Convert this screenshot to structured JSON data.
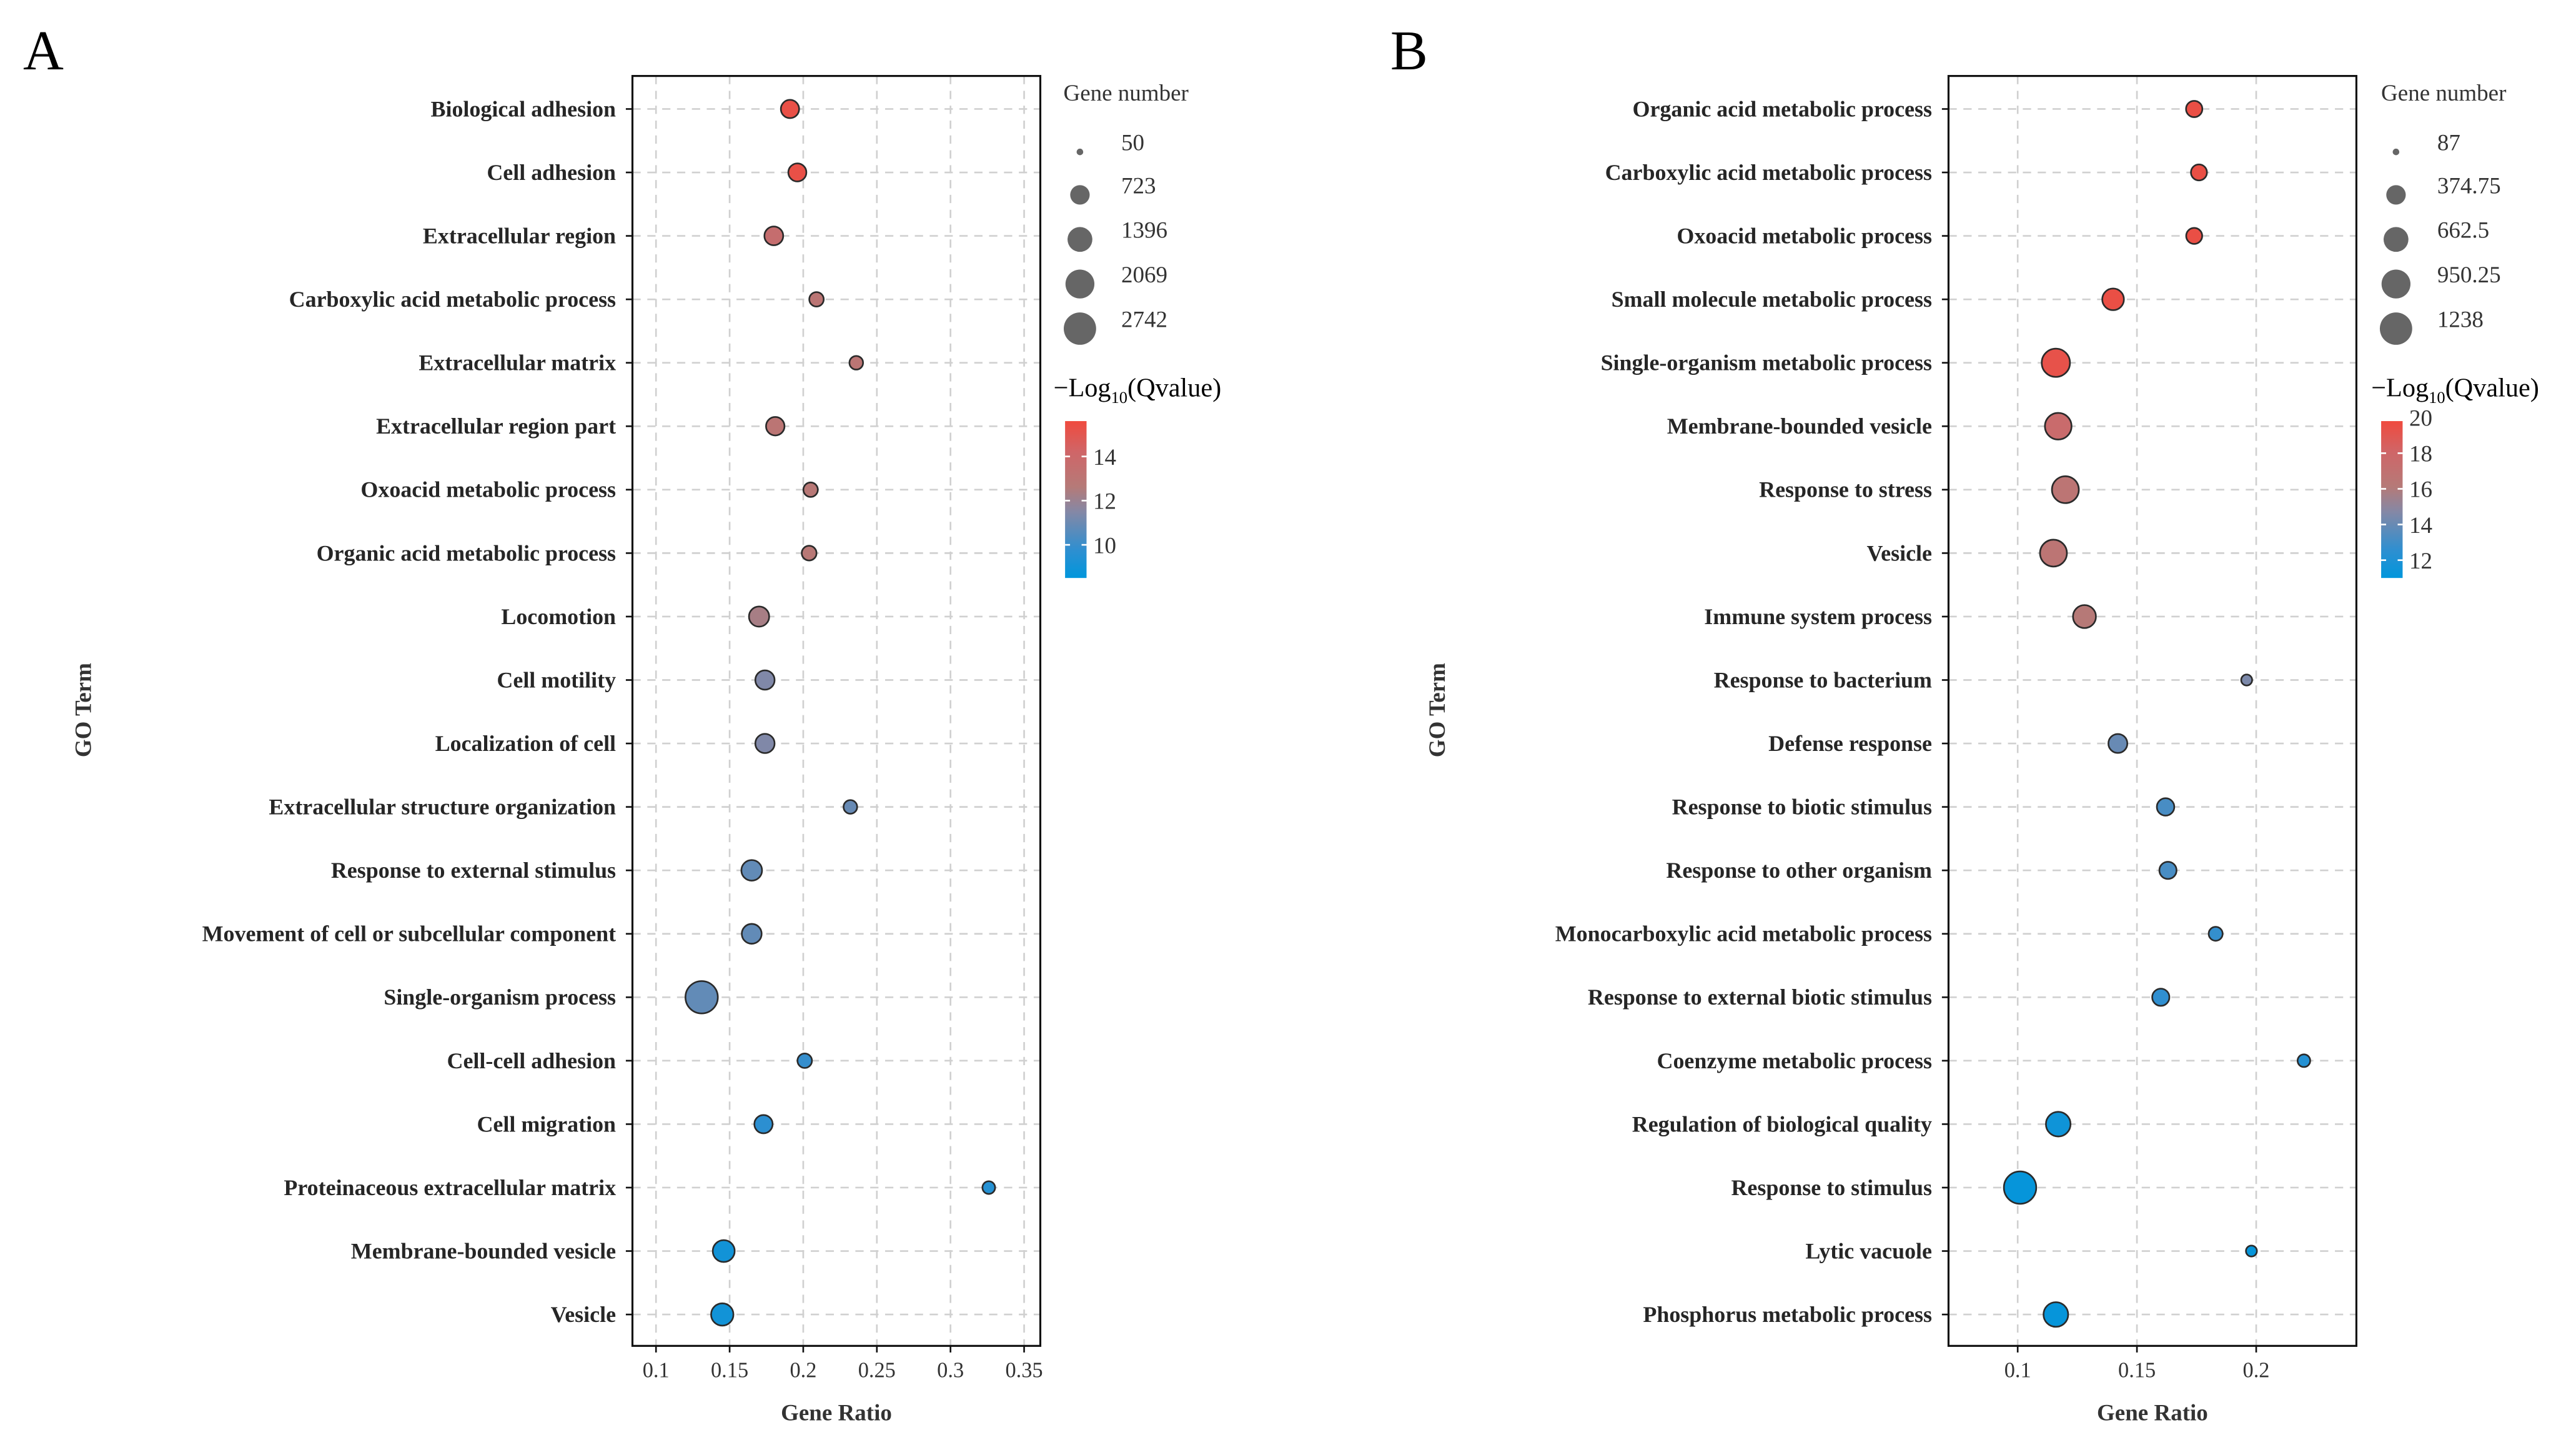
{
  "chart_data": [
    {
      "type": "scatter",
      "panel_label": "A",
      "xlabel": "Gene Ratio",
      "ylabel": "GO Term",
      "xlim": [
        0.084,
        0.361
      ],
      "xticks": [
        0.1,
        0.15,
        0.2,
        0.25,
        0.3,
        0.35
      ],
      "xtick_labels": [
        "0.1",
        "0.15",
        "0.2",
        "0.25",
        "0.3",
        "0.35"
      ],
      "grid": true,
      "size_legend": {
        "title": "Gene number",
        "values": [
          50,
          723,
          1396,
          2069,
          2742
        ],
        "labels": [
          "50",
          "723",
          "1396",
          "2069",
          "2742"
        ]
      },
      "color_legend": {
        "title_prefix": "−Log",
        "title_sub": "10",
        "title_suffix": "(Qvalue)",
        "range": [
          8.5,
          15.6
        ],
        "ticks": [
          14,
          12,
          10
        ],
        "tick_labels": [
          "14",
          "12",
          "10"
        ],
        "low_color": "#0096dc",
        "high_color": "#f04a3e"
      },
      "points": [
        {
          "term": "Biological adhesion",
          "gene_ratio": 0.191,
          "gene_number": 600,
          "neg_log10_q": 15.3
        },
        {
          "term": "Cell adhesion",
          "gene_ratio": 0.196,
          "gene_number": 580,
          "neg_log10_q": 15.3
        },
        {
          "term": "Extracellular region",
          "gene_ratio": 0.18,
          "gene_number": 650,
          "neg_log10_q": 13.6
        },
        {
          "term": "Carboxylic acid metabolic process",
          "gene_ratio": 0.209,
          "gene_number": 300,
          "neg_log10_q": 13.0
        },
        {
          "term": "Extracellular matrix",
          "gene_ratio": 0.236,
          "gene_number": 250,
          "neg_log10_q": 13.0
        },
        {
          "term": "Extracellular region part",
          "gene_ratio": 0.181,
          "gene_number": 620,
          "neg_log10_q": 13.0
        },
        {
          "term": "Oxoacid metabolic process",
          "gene_ratio": 0.205,
          "gene_number": 300,
          "neg_log10_q": 12.8
        },
        {
          "term": "Organic acid metabolic process",
          "gene_ratio": 0.204,
          "gene_number": 320,
          "neg_log10_q": 12.8
        },
        {
          "term": "Locomotion",
          "gene_ratio": 0.17,
          "gene_number": 800,
          "neg_log10_q": 12.3
        },
        {
          "term": "Cell motility",
          "gene_ratio": 0.174,
          "gene_number": 700,
          "neg_log10_q": 11.4
        },
        {
          "term": "Localization of cell",
          "gene_ratio": 0.174,
          "gene_number": 700,
          "neg_log10_q": 11.4
        },
        {
          "term": "Extracellular structure organization",
          "gene_ratio": 0.232,
          "gene_number": 250,
          "neg_log10_q": 10.9
        },
        {
          "term": "Response to external stimulus",
          "gene_ratio": 0.165,
          "gene_number": 850,
          "neg_log10_q": 10.8
        },
        {
          "term": "Movement of cell or subcellular component",
          "gene_ratio": 0.165,
          "gene_number": 760,
          "neg_log10_q": 10.8
        },
        {
          "term": "Single-organism process",
          "gene_ratio": 0.131,
          "gene_number": 2742,
          "neg_log10_q": 10.8
        },
        {
          "term": "Cell-cell adhesion",
          "gene_ratio": 0.201,
          "gene_number": 300,
          "neg_log10_q": 9.9
        },
        {
          "term": "Cell migration",
          "gene_ratio": 0.173,
          "gene_number": 600,
          "neg_log10_q": 9.7
        },
        {
          "term": "Proteinaceous extracellular matrix",
          "gene_ratio": 0.326,
          "gene_number": 200,
          "neg_log10_q": 9.5
        },
        {
          "term": "Membrane-bounded vesicle",
          "gene_ratio": 0.146,
          "gene_number": 1000,
          "neg_log10_q": 9.0
        },
        {
          "term": "Vesicle",
          "gene_ratio": 0.145,
          "gene_number": 1050,
          "neg_log10_q": 9.0
        }
      ]
    },
    {
      "type": "scatter",
      "panel_label": "B",
      "xlabel": "Gene Ratio",
      "ylabel": "GO Term",
      "xlim": [
        0.071,
        0.242
      ],
      "xticks": [
        0.1,
        0.15,
        0.2
      ],
      "xtick_labels": [
        "0.1",
        "0.15",
        "0.2"
      ],
      "grid": true,
      "size_legend": {
        "title": "Gene number",
        "values": [
          87,
          374.75,
          662.5,
          950.25,
          1238
        ],
        "labels": [
          "87",
          "374.75",
          "662.5",
          "950.25",
          "1238"
        ]
      },
      "color_legend": {
        "title_prefix": "−Log",
        "title_sub": "10",
        "title_suffix": "(Qvalue)",
        "range": [
          11.0,
          19.8
        ],
        "ticks": [
          20,
          18,
          16,
          14,
          12
        ],
        "tick_labels": [
          "20",
          "18",
          "16",
          "14",
          "12"
        ],
        "low_color": "#0096dc",
        "high_color": "#f04a3e"
      },
      "points": [
        {
          "term": "Organic acid metabolic process",
          "gene_ratio": 0.174,
          "gene_number": 250,
          "neg_log10_q": 19.5
        },
        {
          "term": "Carboxylic acid metabolic process",
          "gene_ratio": 0.176,
          "gene_number": 240,
          "neg_log10_q": 19.5
        },
        {
          "term": "Oxoacid metabolic process",
          "gene_ratio": 0.174,
          "gene_number": 240,
          "neg_log10_q": 19.5
        },
        {
          "term": "Small molecule metabolic process",
          "gene_ratio": 0.14,
          "gene_number": 480,
          "neg_log10_q": 19.5
        },
        {
          "term": "Single-organism metabolic process",
          "gene_ratio": 0.116,
          "gene_number": 900,
          "neg_log10_q": 19.3
        },
        {
          "term": "Membrane-bounded vesicle",
          "gene_ratio": 0.117,
          "gene_number": 780,
          "neg_log10_q": 17.6
        },
        {
          "term": "Response to stress",
          "gene_ratio": 0.12,
          "gene_number": 800,
          "neg_log10_q": 16.6
        },
        {
          "term": "Vesicle",
          "gene_ratio": 0.115,
          "gene_number": 800,
          "neg_log10_q": 16.6
        },
        {
          "term": "Immune system process",
          "gene_ratio": 0.128,
          "gene_number": 550,
          "neg_log10_q": 16.2
        },
        {
          "term": "Response to bacterium",
          "gene_ratio": 0.196,
          "gene_number": 120,
          "neg_log10_q": 14.5
        },
        {
          "term": "Defense response",
          "gene_ratio": 0.142,
          "gene_number": 350,
          "neg_log10_q": 14.0
        },
        {
          "term": "Response to biotic stimulus",
          "gene_ratio": 0.162,
          "gene_number": 290,
          "neg_log10_q": 13.2
        },
        {
          "term": "Response to other organism",
          "gene_ratio": 0.163,
          "gene_number": 280,
          "neg_log10_q": 13.2
        },
        {
          "term": "Monocarboxylic acid metabolic process",
          "gene_ratio": 0.183,
          "gene_number": 180,
          "neg_log10_q": 12.7
        },
        {
          "term": "Response to external biotic stimulus",
          "gene_ratio": 0.16,
          "gene_number": 280,
          "neg_log10_q": 12.6
        },
        {
          "term": "Coenzyme metabolic process",
          "gene_ratio": 0.22,
          "gene_number": 150,
          "neg_log10_q": 12.2
        },
        {
          "term": "Regulation of biological quality",
          "gene_ratio": 0.117,
          "gene_number": 650,
          "neg_log10_q": 11.5
        },
        {
          "term": "Response to stimulus",
          "gene_ratio": 0.101,
          "gene_number": 1238,
          "neg_log10_q": 11.2
        },
        {
          "term": "Lytic vacuole",
          "gene_ratio": 0.198,
          "gene_number": 120,
          "neg_log10_q": 11.2
        },
        {
          "term": "Phosphorus metabolic process",
          "gene_ratio": 0.116,
          "gene_number": 650,
          "neg_log10_q": 11.2
        }
      ]
    }
  ]
}
